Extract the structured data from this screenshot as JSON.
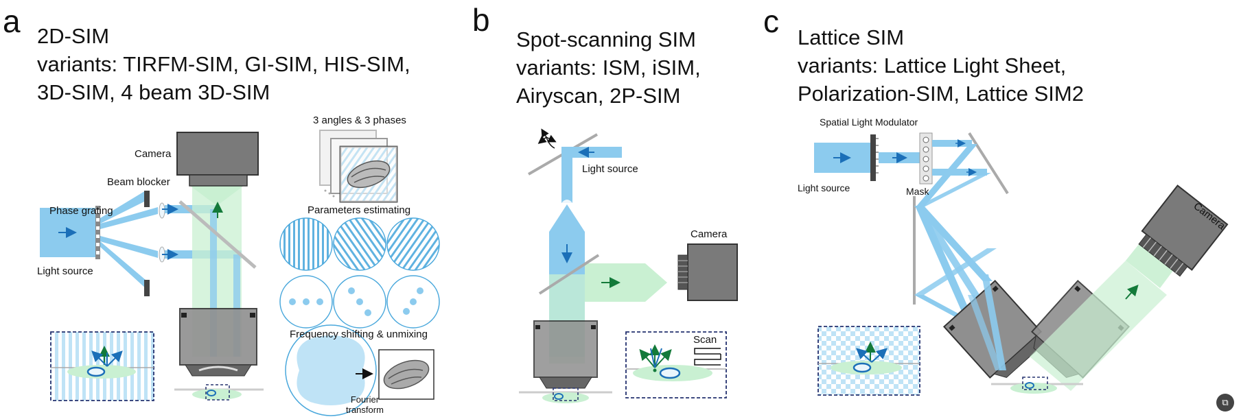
{
  "panels": [
    {
      "letter": "a",
      "title_lines": [
        "2D-SIM",
        "variants: TIRFM-SIM, GI-SIM, HIS-SIM,",
        "3D-SIM, 4 beam 3D-SIM"
      ],
      "labels": {
        "camera": "Camera",
        "beam_blocker": "Beam blocker",
        "phase_grating": "Phase grating",
        "light_source": "Light source",
        "angles_phases": "3 angles & 3 phases",
        "parameters": "Parameters estimating",
        "frequency": "Frequency shifting & unmixing",
        "fourier_line1": "Fourier",
        "fourier_line2": "transform"
      }
    },
    {
      "letter": "b",
      "title_lines": [
        "Spot-scanning SIM",
        "variants: ISM, iSIM,",
        "Airyscan, 2P-SIM"
      ],
      "labels": {
        "light_source": "Light source",
        "camera": "Camera",
        "scan": "Scan"
      }
    },
    {
      "letter": "c",
      "title_lines": [
        "Lattice SIM",
        "variants: Lattice Light Sheet,",
        "Polarization-SIM, Lattice SIM2"
      ],
      "labels": {
        "slm": "Spatial Light Modulator",
        "mask": "Mask",
        "light_source": "Light source",
        "camera": "Camera"
      }
    }
  ],
  "colors": {
    "beam_blue": "#8ccbee",
    "light_blue": "#cde9f8",
    "green": "#c9f0d2",
    "dark_blue": "#1b6fb8",
    "dark_green": "#137a3a",
    "gray": "#8a8a8a",
    "dark_gray": "#555555",
    "navy_dash": "#23306e"
  },
  "icons": [
    "arrow-icon",
    "corner-icon"
  ]
}
